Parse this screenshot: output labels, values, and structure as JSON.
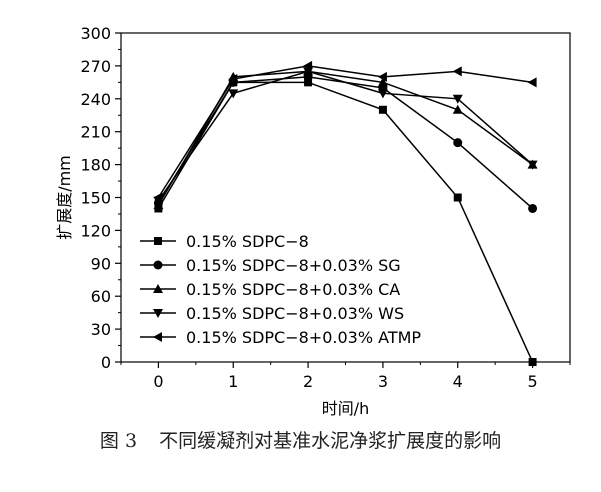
{
  "chart_data": {
    "type": "line",
    "xlabel": "时间/h",
    "ylabel": "扩展度/mm",
    "xlim": [
      -0.5,
      5.5
    ],
    "ylim": [
      0,
      300
    ],
    "x_ticks": [
      0,
      1,
      2,
      3,
      4,
      5
    ],
    "y_ticks": [
      0,
      30,
      60,
      90,
      120,
      150,
      180,
      210,
      240,
      270,
      300
    ],
    "x": [
      0,
      1,
      2,
      3,
      4,
      5
    ],
    "legend_position": "bottom-left",
    "grid": false,
    "series": [
      {
        "name": "0.15% SDPC−8",
        "marker": "square",
        "values": [
          140,
          255,
          255,
          230,
          150,
          0
        ]
      },
      {
        "name": "0.15% SDPC−8+0.03% SG",
        "marker": "circle",
        "values": [
          145,
          255,
          260,
          250,
          200,
          140
        ]
      },
      {
        "name": "0.15% SDPC−8+0.03% CA",
        "marker": "triangle-up",
        "values": [
          143,
          260,
          265,
          255,
          230,
          180
        ]
      },
      {
        "name": "0.15% SDPC−8+0.03% WS",
        "marker": "triangle-down",
        "values": [
          147,
          245,
          265,
          245,
          240,
          180
        ]
      },
      {
        "name": "0.15% SDPC−8+0.03% ATMP",
        "marker": "triangle-left",
        "values": [
          150,
          258,
          270,
          260,
          265,
          255
        ]
      }
    ]
  },
  "caption": {
    "label": "图 3",
    "text": "不同缓凝剂对基准水泥净浆扩展度的影响"
  }
}
